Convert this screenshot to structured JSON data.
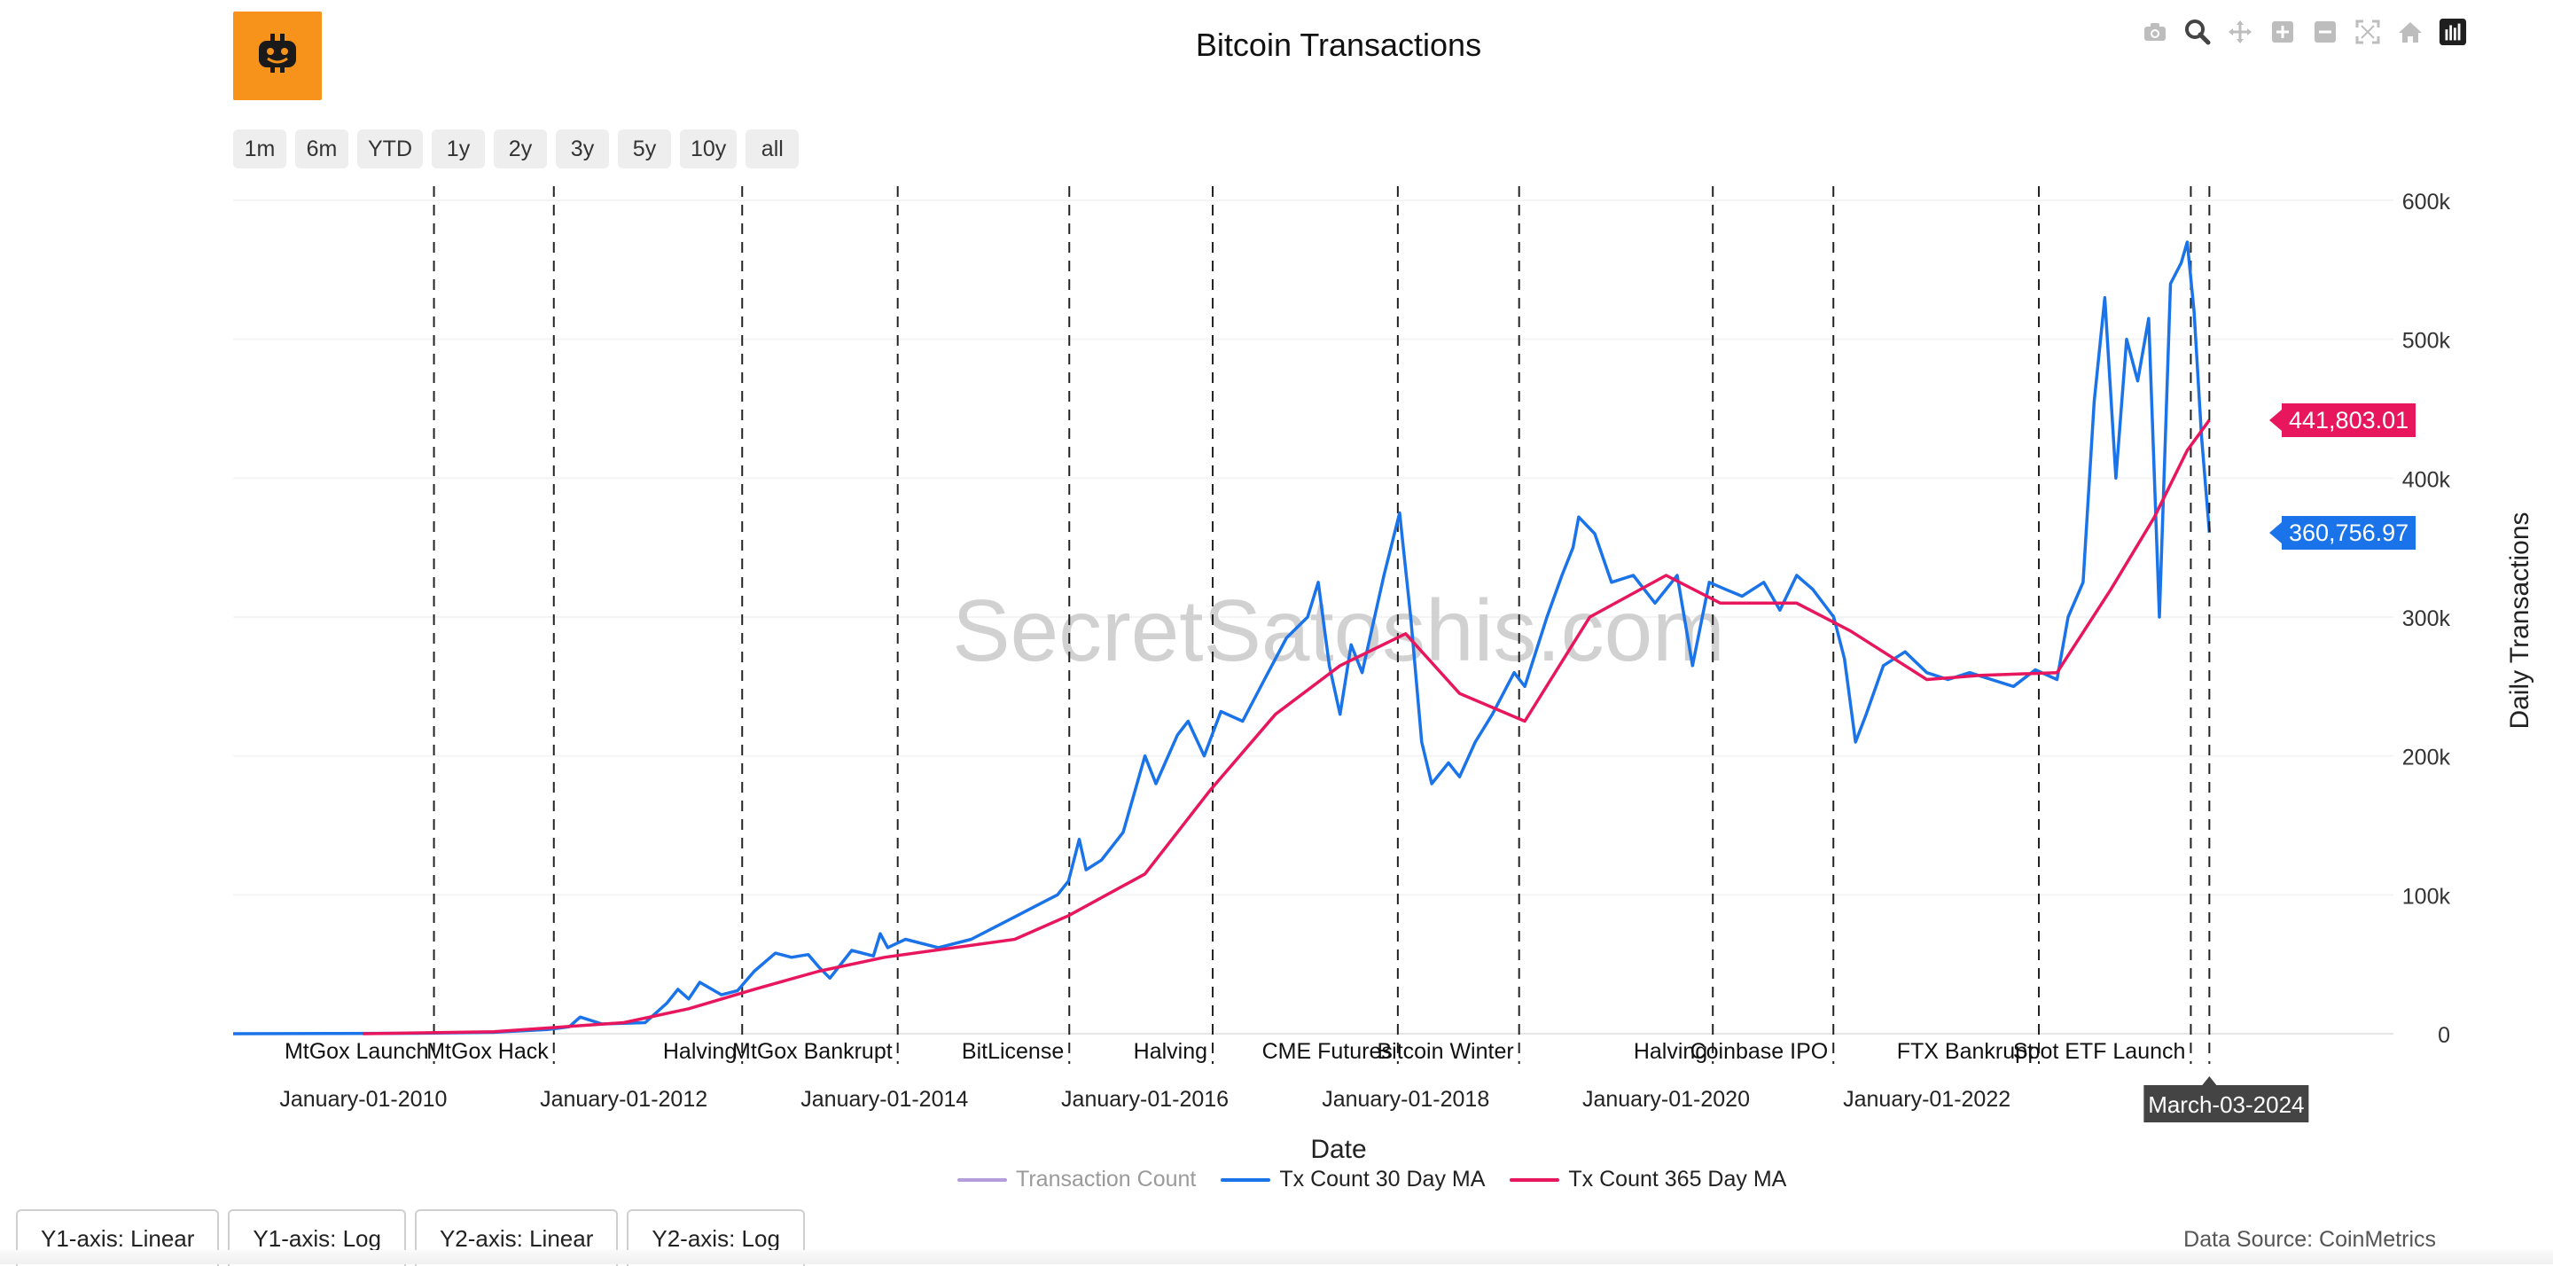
{
  "chart_data": {
    "type": "line",
    "title": "Bitcoin Transactions",
    "xlabel": "Date",
    "ylabel": "Daily Transactions",
    "ylim": [
      0,
      600000
    ],
    "xlim": [
      "2009-01-01",
      "2025-08-01"
    ],
    "y_ticks": [
      0,
      100000,
      200000,
      300000,
      400000,
      500000,
      600000
    ],
    "y_tick_labels": [
      "0",
      "100k",
      "200k",
      "300k",
      "400k",
      "500k",
      "600k"
    ],
    "x_ticks": [
      "2010-01-01",
      "2012-01-01",
      "2014-01-01",
      "2016-01-01",
      "2018-01-01",
      "2020-01-01",
      "2022-01-01"
    ],
    "x_tick_labels": [
      "January-01-2010",
      "January-01-2012",
      "January-01-2014",
      "January-01-2016",
      "January-01-2018",
      "January-01-2020",
      "January-01-2022"
    ],
    "events": [
      {
        "date": "2010-07-18",
        "label": "MtGox Launch"
      },
      {
        "date": "2011-06-19",
        "label": "MtGox Hack"
      },
      {
        "date": "2012-11-28",
        "label": "Halving"
      },
      {
        "date": "2014-02-07",
        "label": "MtGox Bankrupt"
      },
      {
        "date": "2015-06-03",
        "label": "BitLicense"
      },
      {
        "date": "2016-07-09",
        "label": "Halving"
      },
      {
        "date": "2017-12-10",
        "label": "CME Futures"
      },
      {
        "date": "2018-11-15",
        "label": "Bitcoin Winter"
      },
      {
        "date": "2020-05-11",
        "label": "Halving"
      },
      {
        "date": "2021-04-14",
        "label": "Coinbase IPO"
      },
      {
        "date": "2022-11-11",
        "label": "FTX Bankrupt"
      },
      {
        "date": "2024-01-11",
        "label": "Spot ETF Launch"
      }
    ],
    "series": [
      {
        "name": "Transaction Count",
        "color": "#b39ddb",
        "visible": false,
        "points": []
      },
      {
        "name": "Tx Count 30 Day MA",
        "color": "#1a73e8",
        "points": [
          [
            "2009-01-01",
            0
          ],
          [
            "2009-10-01",
            100
          ],
          [
            "2010-06-01",
            300
          ],
          [
            "2011-01-01",
            1000
          ],
          [
            "2011-06-01",
            3000
          ],
          [
            "2011-08-01",
            5000
          ],
          [
            "2011-09-01",
            12000
          ],
          [
            "2011-11-01",
            7000
          ],
          [
            "2012-03-01",
            8000
          ],
          [
            "2012-05-01",
            22000
          ],
          [
            "2012-06-01",
            32000
          ],
          [
            "2012-07-01",
            25000
          ],
          [
            "2012-08-01",
            37000
          ],
          [
            "2012-10-01",
            28000
          ],
          [
            "2012-11-15",
            31000
          ],
          [
            "2013-01-01",
            45000
          ],
          [
            "2013-03-01",
            58000
          ],
          [
            "2013-04-15",
            55000
          ],
          [
            "2013-06-01",
            57000
          ],
          [
            "2013-07-01",
            48000
          ],
          [
            "2013-08-01",
            40000
          ],
          [
            "2013-10-01",
            60000
          ],
          [
            "2013-12-01",
            56000
          ],
          [
            "2013-12-20",
            72000
          ],
          [
            "2014-01-10",
            62000
          ],
          [
            "2014-03-01",
            68000
          ],
          [
            "2014-06-01",
            62000
          ],
          [
            "2014-09-01",
            68000
          ],
          [
            "2014-12-01",
            80000
          ],
          [
            "2015-03-01",
            92000
          ],
          [
            "2015-05-01",
            100000
          ],
          [
            "2015-06-01",
            110000
          ],
          [
            "2015-07-01",
            140000
          ],
          [
            "2015-07-20",
            118000
          ],
          [
            "2015-09-01",
            125000
          ],
          [
            "2015-11-01",
            145000
          ],
          [
            "2016-01-01",
            200000
          ],
          [
            "2016-02-01",
            180000
          ],
          [
            "2016-04-01",
            215000
          ],
          [
            "2016-05-01",
            225000
          ],
          [
            "2016-06-15",
            200000
          ],
          [
            "2016-08-01",
            232000
          ],
          [
            "2016-10-01",
            225000
          ],
          [
            "2016-12-01",
            255000
          ],
          [
            "2017-02-01",
            285000
          ],
          [
            "2017-04-01",
            300000
          ],
          [
            "2017-05-01",
            325000
          ],
          [
            "2017-06-01",
            265000
          ],
          [
            "2017-07-01",
            230000
          ],
          [
            "2017-08-01",
            280000
          ],
          [
            "2017-09-01",
            260000
          ],
          [
            "2017-11-01",
            330000
          ],
          [
            "2017-12-15",
            375000
          ],
          [
            "2018-01-15",
            300000
          ],
          [
            "2018-02-15",
            210000
          ],
          [
            "2018-03-15",
            180000
          ],
          [
            "2018-05-01",
            195000
          ],
          [
            "2018-06-01",
            185000
          ],
          [
            "2018-07-15",
            210000
          ],
          [
            "2018-09-01",
            230000
          ],
          [
            "2018-11-01",
            260000
          ],
          [
            "2018-12-01",
            250000
          ],
          [
            "2019-02-01",
            300000
          ],
          [
            "2019-03-15",
            330000
          ],
          [
            "2019-04-15",
            350000
          ],
          [
            "2019-05-01",
            372000
          ],
          [
            "2019-06-15",
            360000
          ],
          [
            "2019-08-01",
            325000
          ],
          [
            "2019-10-01",
            330000
          ],
          [
            "2019-12-01",
            310000
          ],
          [
            "2020-02-01",
            330000
          ],
          [
            "2020-03-15",
            265000
          ],
          [
            "2020-05-01",
            325000
          ],
          [
            "2020-06-15",
            320000
          ],
          [
            "2020-08-01",
            315000
          ],
          [
            "2020-10-01",
            325000
          ],
          [
            "2020-11-15",
            305000
          ],
          [
            "2021-01-01",
            330000
          ],
          [
            "2021-02-15",
            320000
          ],
          [
            "2021-04-15",
            300000
          ],
          [
            "2021-05-15",
            270000
          ],
          [
            "2021-06-15",
            210000
          ],
          [
            "2021-07-15",
            230000
          ],
          [
            "2021-09-01",
            265000
          ],
          [
            "2021-11-01",
            275000
          ],
          [
            "2022-01-01",
            260000
          ],
          [
            "2022-03-01",
            255000
          ],
          [
            "2022-05-01",
            260000
          ],
          [
            "2022-07-01",
            255000
          ],
          [
            "2022-09-01",
            250000
          ],
          [
            "2022-11-01",
            262000
          ],
          [
            "2023-01-01",
            255000
          ],
          [
            "2023-02-01",
            300000
          ],
          [
            "2023-03-15",
            325000
          ],
          [
            "2023-04-15",
            455000
          ],
          [
            "2023-05-15",
            530000
          ],
          [
            "2023-06-15",
            400000
          ],
          [
            "2023-07-15",
            500000
          ],
          [
            "2023-08-15",
            470000
          ],
          [
            "2023-09-15",
            515000
          ],
          [
            "2023-10-15",
            300000
          ],
          [
            "2023-11-15",
            540000
          ],
          [
            "2023-12-15",
            555000
          ],
          [
            "2024-01-01",
            570000
          ],
          [
            "2024-01-20",
            520000
          ],
          [
            "2024-02-10",
            430000
          ],
          [
            "2024-03-03",
            360757
          ]
        ]
      },
      {
        "name": "Tx Count 365 Day MA",
        "color": "#e8175d",
        "points": [
          [
            "2009-12-31",
            0
          ],
          [
            "2011-01-01",
            1500
          ],
          [
            "2012-01-01",
            8000
          ],
          [
            "2012-07-01",
            18000
          ],
          [
            "2013-01-01",
            32000
          ],
          [
            "2013-07-01",
            45000
          ],
          [
            "2014-01-01",
            55000
          ],
          [
            "2015-01-01",
            68000
          ],
          [
            "2015-06-01",
            85000
          ],
          [
            "2016-01-01",
            115000
          ],
          [
            "2016-07-01",
            175000
          ],
          [
            "2017-01-01",
            230000
          ],
          [
            "2017-07-01",
            265000
          ],
          [
            "2018-01-01",
            288000
          ],
          [
            "2018-06-01",
            245000
          ],
          [
            "2018-12-01",
            225000
          ],
          [
            "2019-06-01",
            300000
          ],
          [
            "2020-01-01",
            330000
          ],
          [
            "2020-06-01",
            310000
          ],
          [
            "2021-01-01",
            310000
          ],
          [
            "2021-06-01",
            290000
          ],
          [
            "2022-01-01",
            255000
          ],
          [
            "2022-06-01",
            258000
          ],
          [
            "2023-01-01",
            260000
          ],
          [
            "2023-06-01",
            320000
          ],
          [
            "2023-10-01",
            372000
          ],
          [
            "2024-01-01",
            420000
          ],
          [
            "2024-03-03",
            441803
          ]
        ]
      }
    ],
    "hover": {
      "date_label": "March-03-2024",
      "value_30d": "360,756.97",
      "value_365d": "441,803.01"
    },
    "watermark": "SecretSatoshis.com"
  },
  "range_buttons": [
    "1m",
    "6m",
    "YTD",
    "1y",
    "2y",
    "3y",
    "5y",
    "10y",
    "all"
  ],
  "legend": [
    {
      "label": "Transaction Count",
      "color": "#b39ddb",
      "muted": true
    },
    {
      "label": "Tx Count 30 Day MA",
      "color": "#1a73e8",
      "muted": false
    },
    {
      "label": "Tx Count 365 Day MA",
      "color": "#e8175d",
      "muted": false
    }
  ],
  "axis_buttons": [
    "Y1-axis: Linear",
    "Y1-axis: Log",
    "Y2-axis: Linear",
    "Y2-axis: Log"
  ],
  "source_text": "Data Source: CoinMetrics",
  "toolbar_icons": [
    "camera-icon",
    "zoom-icon",
    "pan-icon",
    "zoom-in-icon",
    "zoom-out-icon",
    "autoscale-icon",
    "reset-axes-icon",
    "plotly-logo-icon"
  ]
}
